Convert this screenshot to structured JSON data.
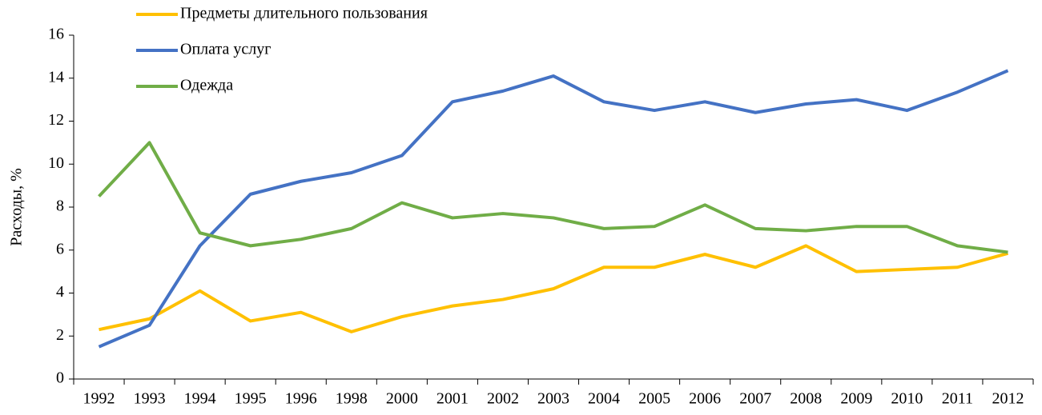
{
  "chart_data": {
    "type": "line",
    "y_label": "Расходы, %",
    "categories": [
      "1992",
      "1993",
      "1994",
      "1995",
      "1996",
      "1998",
      "2000",
      "2001",
      "2002",
      "2003",
      "2004",
      "2005",
      "2006",
      "2007",
      "2008",
      "2009",
      "2010",
      "2011",
      "2012"
    ],
    "series": [
      {
        "name": "Предметы длительного пользования",
        "color": "#FFC000",
        "values": [
          2.3,
          2.8,
          4.1,
          2.7,
          3.1,
          2.2,
          2.9,
          3.4,
          3.7,
          4.2,
          5.2,
          5.2,
          5.8,
          5.2,
          6.2,
          5.0,
          5.1,
          5.2,
          5.85
        ]
      },
      {
        "name": "Оплата услуг",
        "color": "#4472C4",
        "values": [
          1.5,
          2.5,
          6.2,
          8.6,
          9.2,
          9.6,
          10.4,
          12.9,
          13.4,
          14.1,
          12.9,
          12.5,
          12.9,
          12.4,
          12.8,
          13.0,
          12.5,
          13.35,
          14.35
        ]
      },
      {
        "name": "Одежда",
        "color": "#70AD47",
        "values": [
          8.5,
          11.0,
          6.8,
          6.2,
          6.5,
          7.0,
          8.2,
          7.5,
          7.7,
          7.5,
          7.0,
          7.1,
          8.1,
          7.0,
          6.9,
          7.1,
          7.1,
          6.2,
          5.9
        ]
      }
    ],
    "ylim": [
      0,
      16
    ],
    "yticks": [
      0,
      2,
      4,
      6,
      8,
      10,
      12,
      14,
      16
    ],
    "legend": "top-left",
    "grid": false
  }
}
